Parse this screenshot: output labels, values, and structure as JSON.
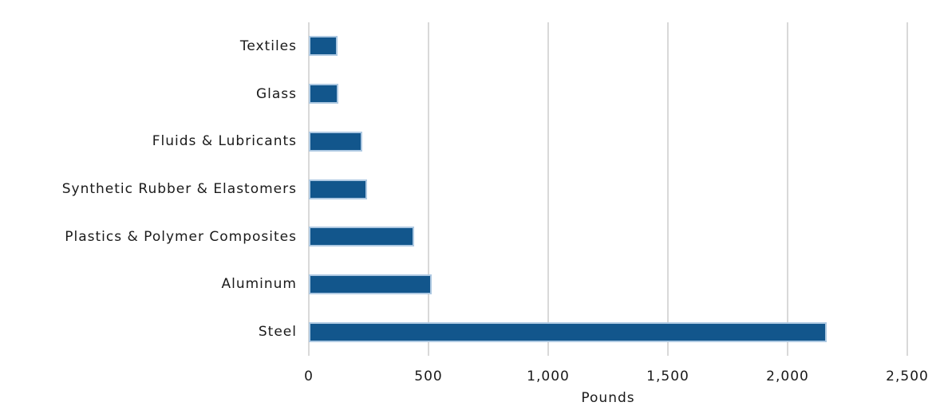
{
  "chart_data": {
    "type": "bar",
    "orientation": "horizontal",
    "title": "",
    "categories": [
      "Textiles",
      "Glass",
      "Fluids & Lubricants",
      "Synthetic Rubber & Elastomers",
      "Plastics & Polymer Composites",
      "Aluminum",
      "Steel"
    ],
    "values": [
      105,
      110,
      210,
      230,
      425,
      500,
      2150
    ],
    "xlabel": "Pounds",
    "ylabel": "",
    "xlim": [
      0,
      2500
    ],
    "x_ticks": [
      {
        "value": 0,
        "label": "0"
      },
      {
        "value": 500,
        "label": "500"
      },
      {
        "value": 1000,
        "label": "1,000"
      },
      {
        "value": 1500,
        "label": "1,500"
      },
      {
        "value": 2000,
        "label": "2,000"
      },
      {
        "value": 2500,
        "label": "2,500"
      }
    ],
    "grid": "vertical-gridlines",
    "legend": "none",
    "colors": {
      "bar_fill": "#12568C",
      "bar_border": "#AEC9E2",
      "gridline": "#D9D9D9",
      "text": "#1A1A1A",
      "background": "#FFFFFF"
    }
  }
}
